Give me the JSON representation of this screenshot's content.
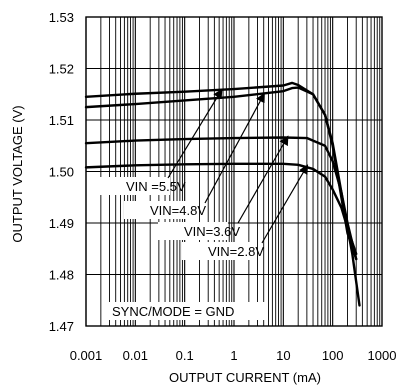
{
  "chart_data": {
    "type": "line",
    "xlabel": "OUTPUT CURRENT (mA)",
    "ylabel": "OUTPUT VOLTAGE (V)",
    "x_scale": "log",
    "xlim": [
      0.001,
      1000
    ],
    "ylim": [
      1.47,
      1.53
    ],
    "grid": true,
    "x_ticks": [
      "0.001",
      "0.01",
      "0.1",
      "1",
      "10",
      "100",
      "1000"
    ],
    "y_ticks": [
      "1.47",
      "1.48",
      "1.49",
      "1.50",
      "1.51",
      "1.52",
      "1.53"
    ],
    "series": [
      {
        "name": "VIN =5.5V",
        "x": [
          0.001,
          0.01,
          0.1,
          1,
          10,
          15,
          20,
          40,
          70,
          100,
          150,
          200,
          300
        ],
        "y": [
          1.5145,
          1.5151,
          1.5155,
          1.516,
          1.5167,
          1.5172,
          1.5168,
          1.515,
          1.511,
          1.505,
          1.495,
          1.488,
          1.483
        ]
      },
      {
        "name": "VIN=4.8V",
        "x": [
          0.001,
          0.01,
          0.1,
          1,
          10,
          15,
          20,
          40,
          70,
          100,
          150,
          200,
          300
        ],
        "y": [
          1.5125,
          1.5131,
          1.5138,
          1.5145,
          1.5156,
          1.5162,
          1.5163,
          1.515,
          1.511,
          1.5055,
          1.496,
          1.489,
          1.484
        ]
      },
      {
        "name": "VIN=3.6V",
        "x": [
          0.001,
          0.01,
          0.1,
          1,
          10,
          30,
          70,
          100,
          150,
          200,
          300
        ],
        "y": [
          1.5055,
          1.506,
          1.5063,
          1.5065,
          1.5066,
          1.5065,
          1.505,
          1.502,
          1.496,
          1.49,
          1.483
        ]
      },
      {
        "name": "VIN=2.8V",
        "x": [
          0.001,
          0.01,
          0.1,
          1,
          10,
          20,
          40,
          70,
          100,
          150,
          200,
          250,
          350
        ],
        "y": [
          1.5008,
          1.5012,
          1.5014,
          1.5015,
          1.5015,
          1.5013,
          1.5005,
          1.499,
          1.4965,
          1.493,
          1.489,
          1.484,
          1.474
        ]
      }
    ],
    "annotations": [
      "SYNC/MODE = GND"
    ]
  }
}
